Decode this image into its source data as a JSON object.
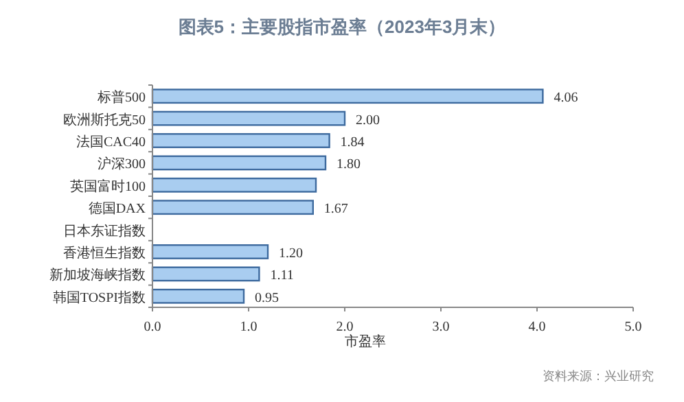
{
  "chart_data": {
    "type": "bar",
    "orientation": "horizontal",
    "title": "图表5：主要股指市盈率（2023年3月末）",
    "categories": [
      "标普500",
      "欧洲斯托克50",
      "法国CAC40",
      "沪深300",
      "英国富时100",
      "德国DAX",
      "日本东证指数",
      "香港恒生指数",
      "新加坡海峡指数",
      "韩国TOSPI指数"
    ],
    "values": [
      4.06,
      2.0,
      1.84,
      1.8,
      1.7,
      1.67,
      null,
      1.2,
      1.11,
      0.95
    ],
    "value_labels": [
      "4.06",
      "2.00",
      "1.84",
      "1.80",
      null,
      "1.67",
      null,
      "1.20",
      "1.11",
      "0.95"
    ],
    "color": "#a9cdf0",
    "xlabel": "市盈率",
    "xlim": [
      0,
      5
    ],
    "xticks": [
      {
        "value": 0,
        "label": "0.0"
      },
      {
        "value": 1,
        "label": "1.0"
      },
      {
        "value": 2,
        "label": "2.0"
      },
      {
        "value": 3,
        "label": "3.0"
      },
      {
        "value": 4,
        "label": "4.0"
      },
      {
        "value": 5,
        "label": "5.0"
      }
    ],
    "grid": false,
    "annotations": [
      "资料来源：兴业研究"
    ]
  }
}
